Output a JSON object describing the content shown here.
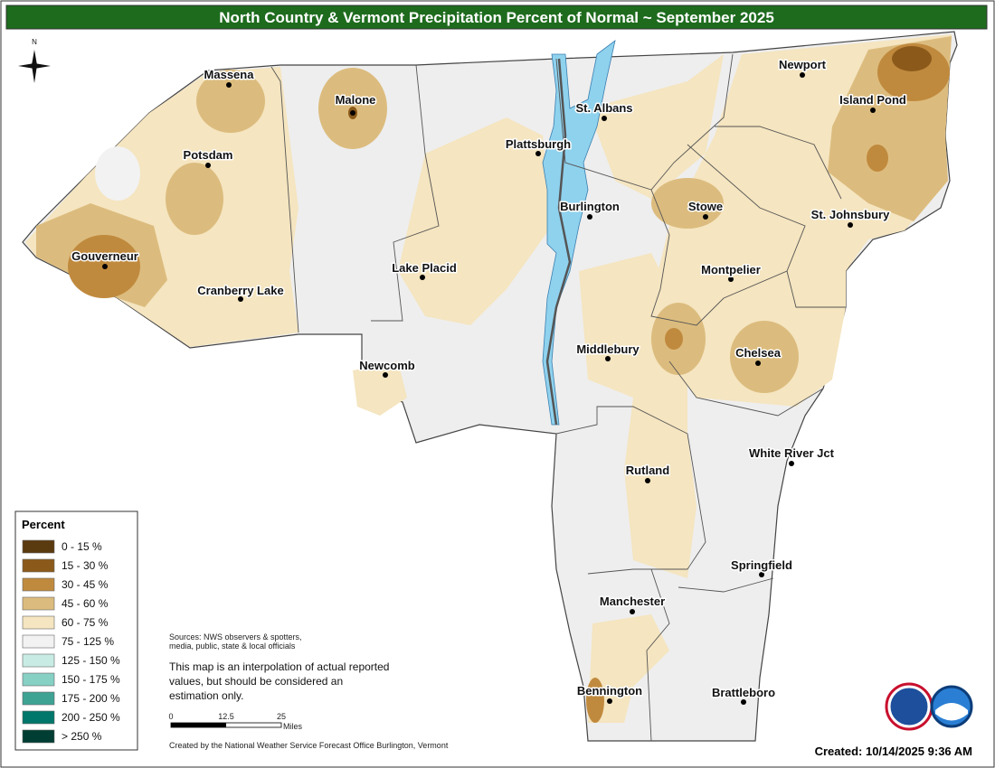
{
  "title": "North Country & Vermont Precipitation Percent of Normal ~ September 2025",
  "north": "N",
  "cities": [
    {
      "label": "Massena"
    },
    {
      "label": "Malone"
    },
    {
      "label": "Potsdam"
    },
    {
      "label": "Gouverneur"
    },
    {
      "label": "Cranberry Lake"
    },
    {
      "label": "Lake Placid"
    },
    {
      "label": "Newcomb"
    },
    {
      "label": "Plattsburgh"
    },
    {
      "label": "St. Albans"
    },
    {
      "label": "Burlington"
    },
    {
      "label": "Stowe"
    },
    {
      "label": "Newport"
    },
    {
      "label": "Island Pond"
    },
    {
      "label": "St. Johnsbury"
    },
    {
      "label": "Montpelier"
    },
    {
      "label": "Middlebury"
    },
    {
      "label": "Chelsea"
    },
    {
      "label": "White River Jct"
    },
    {
      "label": "Rutland"
    },
    {
      "label": "Springfield"
    },
    {
      "label": "Manchester"
    },
    {
      "label": "Bennington"
    },
    {
      "label": "Brattleboro"
    }
  ],
  "legend": {
    "title": "Percent",
    "entries": [
      {
        "label": "0 - 15 %",
        "color": "#5a3a0f"
      },
      {
        "label": "15 - 30 %",
        "color": "#8b5a1a"
      },
      {
        "label": "30 - 45 %",
        "color": "#c08a3e"
      },
      {
        "label": "45 - 60 %",
        "color": "#dcbc7e"
      },
      {
        "label": "60 - 75 %",
        "color": "#f5e5c0"
      },
      {
        "label": "75 - 125 %",
        "color": "#f2f2f2"
      },
      {
        "label": "125 - 150 %",
        "color": "#c8ece4"
      },
      {
        "label": "150 - 175 %",
        "color": "#86d0c4"
      },
      {
        "label": "175 - 200 %",
        "color": "#3fa394"
      },
      {
        "label": "200 - 250 %",
        "color": "#00776a"
      },
      {
        "label": "> 250 %",
        "color": "#003d32"
      }
    ]
  },
  "sources": [
    "Sources: NWS observers & spotters,",
    "media, public, state & local officials"
  ],
  "disclaimer": [
    "This map is an interpolation of actual reported",
    "values, but should be considered an",
    "estimation only."
  ],
  "scale": {
    "ticks": [
      0,
      12.5,
      25
    ],
    "unit": "Miles"
  },
  "credit": "Created by the National Weather Service Forecast Office Burlington, Vermont",
  "created": "Created: 10/14/2025 9:36 AM"
}
